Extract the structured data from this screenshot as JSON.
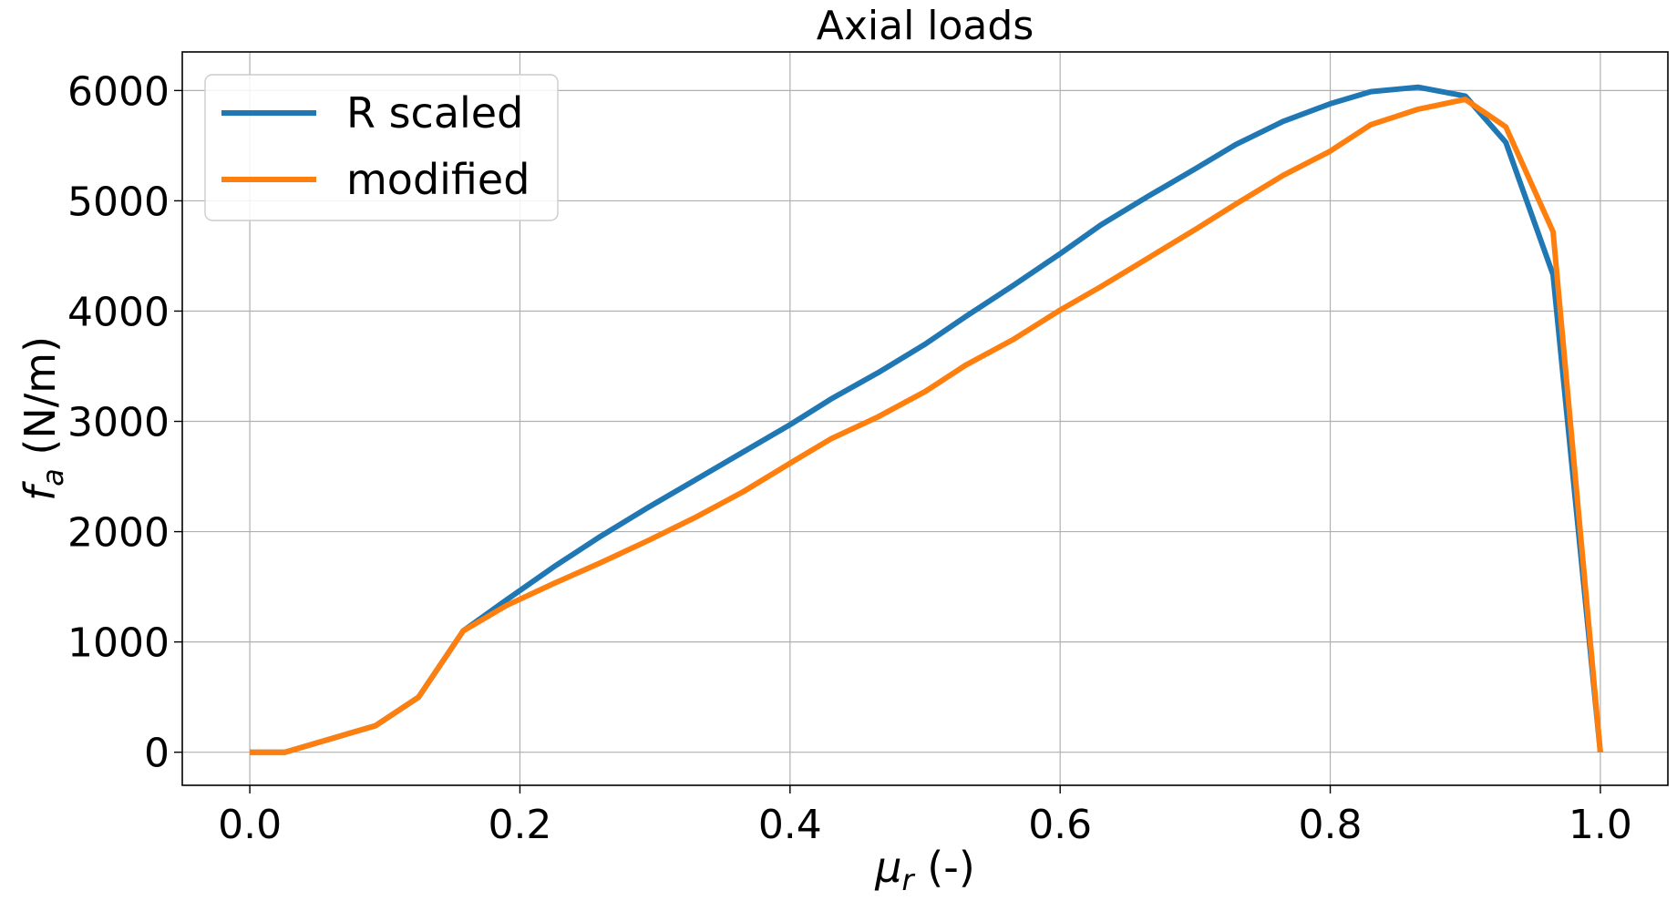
{
  "chart_data": {
    "type": "line",
    "title": "Axial loads",
    "xlabel": {
      "main": "μ",
      "sub": "r",
      "rest": " (-)"
    },
    "ylabel": {
      "main": "f",
      "sub": "a",
      "rest": " (N/m)"
    },
    "xlim": [
      -0.05,
      1.05
    ],
    "ylim": [
      -300,
      6350
    ],
    "xticks": [
      0.0,
      0.2,
      0.4,
      0.6,
      0.8,
      1.0
    ],
    "xtick_labels": [
      "0.0",
      "0.2",
      "0.4",
      "0.6",
      "0.8",
      "1.0"
    ],
    "yticks": [
      0,
      1000,
      2000,
      3000,
      4000,
      5000,
      6000
    ],
    "ytick_labels": [
      "0",
      "1000",
      "2000",
      "3000",
      "4000",
      "5000",
      "6000"
    ],
    "grid": true,
    "legend_position": "top-left",
    "series": [
      {
        "name": "R scaled",
        "color": "#1f77b4",
        "x": [
          0.0,
          0.026,
          0.093,
          0.125,
          0.158,
          0.19,
          0.225,
          0.26,
          0.295,
          0.33,
          0.365,
          0.4,
          0.43,
          0.465,
          0.5,
          0.53,
          0.565,
          0.6,
          0.63,
          0.665,
          0.7,
          0.73,
          0.765,
          0.8,
          0.83,
          0.865,
          0.9,
          0.93,
          0.965,
          1.0
        ],
        "y": [
          0,
          0,
          240,
          500,
          1100,
          1380,
          1680,
          1960,
          2220,
          2470,
          2720,
          2970,
          3200,
          3440,
          3700,
          3950,
          4230,
          4520,
          4780,
          5040,
          5290,
          5510,
          5720,
          5880,
          5990,
          6030,
          5950,
          5530,
          4330,
          0
        ]
      },
      {
        "name": "modified",
        "color": "#ff7f0e",
        "x": [
          0.0,
          0.026,
          0.093,
          0.125,
          0.158,
          0.19,
          0.225,
          0.26,
          0.295,
          0.33,
          0.365,
          0.4,
          0.43,
          0.465,
          0.5,
          0.53,
          0.565,
          0.6,
          0.63,
          0.665,
          0.7,
          0.73,
          0.765,
          0.8,
          0.83,
          0.865,
          0.9,
          0.93,
          0.965,
          1.0
        ],
        "y": [
          0,
          0,
          240,
          500,
          1100,
          1330,
          1530,
          1720,
          1920,
          2130,
          2360,
          2620,
          2840,
          3040,
          3270,
          3510,
          3740,
          4010,
          4220,
          4480,
          4740,
          4970,
          5230,
          5450,
          5690,
          5830,
          5920,
          5670,
          4720,
          0
        ]
      }
    ]
  }
}
